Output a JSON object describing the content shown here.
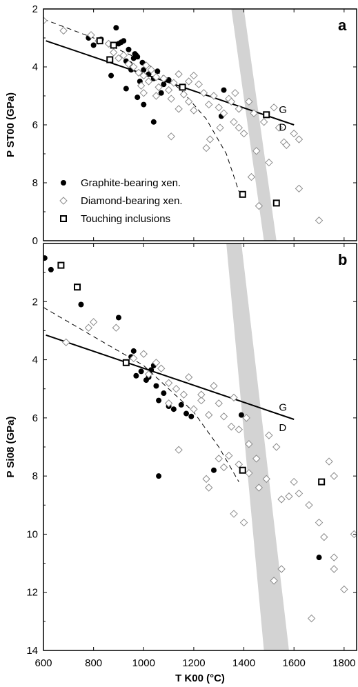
{
  "chart_data": {
    "type": "scatter",
    "xlabel": "T K00 (°C)",
    "xlim": [
      600,
      1850
    ],
    "xticks": [
      600,
      800,
      1000,
      1200,
      1400,
      1600,
      1800
    ],
    "legend": {
      "placement": "bottom-left of panel a",
      "entries": [
        "Graphite-bearing xen.",
        "Diamond-bearing xen.",
        "Touching inclusions"
      ]
    },
    "panels": [
      {
        "letter": "a",
        "ylabel": "P ST00 (GPa)",
        "ylim": [
          2,
          10
        ],
        "yticks": [
          2,
          4,
          6,
          8,
          0
        ],
        "band": [
          [
            1350,
            2
          ],
          [
            1400,
            2
          ],
          [
            1530,
            10
          ],
          [
            1480,
            10
          ]
        ],
        "lines": [
          {
            "label": "G",
            "style": "solid",
            "label_at": [
              1540,
              5.6
            ],
            "points": [
              [
                610,
                3.1
              ],
              [
                1600,
                6.0
              ]
            ]
          },
          {
            "label": "D",
            "style": "dashed",
            "label_at": [
              1540,
              6.2
            ],
            "points": [
              [
                600,
                2.35
              ],
              [
                800,
                3.0
              ],
              [
                1000,
                3.8
              ],
              [
                1150,
                4.8
              ],
              [
                1250,
                5.8
              ],
              [
                1330,
                7.0
              ],
              [
                1380,
                8.3
              ]
            ]
          }
        ],
        "series": [
          {
            "name": "Graphite-bearing xen.",
            "marker": "filled-circle",
            "points": [
              [
                780,
                3.0
              ],
              [
                800,
                3.25
              ],
              [
                830,
                3.05
              ],
              [
                870,
                4.3
              ],
              [
                890,
                2.65
              ],
              [
                900,
                3.2
              ],
              [
                910,
                3.15
              ],
              [
                920,
                3.1
              ],
              [
                930,
                3.8
              ],
              [
                940,
                3.4
              ],
              [
                945,
                3.9
              ],
              [
                950,
                4.1
              ],
              [
                960,
                3.7
              ],
              [
                965,
                3.55
              ],
              [
                970,
                3.6
              ],
              [
                975,
                3.65
              ],
              [
                985,
                4.5
              ],
              [
                995,
                3.85
              ],
              [
                1000,
                4.1
              ],
              [
                1020,
                4.25
              ],
              [
                1040,
                4.4
              ],
              [
                1055,
                4.15
              ],
              [
                1070,
                4.9
              ],
              [
                1080,
                4.6
              ],
              [
                1100,
                4.45
              ],
              [
                1040,
                5.9
              ],
              [
                1000,
                5.3
              ],
              [
                930,
                4.75
              ],
              [
                975,
                5.05
              ],
              [
                1320,
                4.8
              ],
              [
                1310,
                5.7
              ]
            ]
          },
          {
            "name": "Diamond-bearing xen.",
            "marker": "open-diamond",
            "points": [
              [
                600,
                2.4
              ],
              [
                680,
                2.75
              ],
              [
                790,
                2.9
              ],
              [
                820,
                3.1
              ],
              [
                860,
                3.2
              ],
              [
                880,
                3.5
              ],
              [
                900,
                3.7
              ],
              [
                920,
                3.6
              ],
              [
                940,
                3.9
              ],
              [
                960,
                4.0
              ],
              [
                980,
                4.2
              ],
              [
                1000,
                4.3
              ],
              [
                1010,
                3.95
              ],
              [
                1020,
                4.5
              ],
              [
                1030,
                4.1
              ],
              [
                1050,
                4.35
              ],
              [
                1060,
                4.7
              ],
              [
                1080,
                4.4
              ],
              [
                1100,
                4.8
              ],
              [
                1110,
                5.1
              ],
              [
                1120,
                4.55
              ],
              [
                1140,
                4.25
              ],
              [
                1160,
                4.95
              ],
              [
                1180,
                5.2
              ],
              [
                1200,
                5.5
              ],
              [
                1220,
                4.6
              ],
              [
                1240,
                4.9
              ],
              [
                1260,
                5.3
              ],
              [
                1280,
                5.0
              ],
              [
                1300,
                5.4
              ],
              [
                1320,
                5.6
              ],
              [
                1340,
                5.1
              ],
              [
                1360,
                5.9
              ],
              [
                1380,
                6.1
              ],
              [
                1400,
                6.3
              ],
              [
                1420,
                5.2
              ],
              [
                1440,
                5.6
              ],
              [
                1450,
                6.9
              ],
              [
                1480,
                5.9
              ],
              [
                1500,
                7.3
              ],
              [
                1520,
                5.4
              ],
              [
                1540,
                6.1
              ],
              [
                1560,
                6.6
              ],
              [
                1600,
                6.3
              ],
              [
                1620,
                6.5
              ],
              [
                1570,
                6.7
              ],
              [
                1430,
                7.8
              ],
              [
                1460,
                8.8
              ],
              [
                1620,
                8.2
              ],
              [
                1700,
                9.3
              ],
              [
                1110,
                6.4
              ],
              [
                1250,
                6.8
              ],
              [
                1265,
                6.5
              ],
              [
                1305,
                6.1
              ],
              [
                990,
                4.65
              ],
              [
                1050,
                5.0
              ],
              [
                1140,
                5.45
              ],
              [
                1000,
                4.9
              ],
              [
                1180,
                4.5
              ],
              [
                1200,
                4.3
              ],
              [
                1350,
                5.2
              ],
              [
                1365,
                4.9
              ],
              [
                1380,
                5.45
              ]
            ]
          },
          {
            "name": "Touching inclusions",
            "marker": "open-square",
            "points": [
              [
                825,
                3.1
              ],
              [
                865,
                3.75
              ],
              [
                880,
                3.25
              ],
              [
                1155,
                4.7
              ],
              [
                1490,
                5.65
              ],
              [
                1395,
                8.4
              ],
              [
                1530,
                8.7
              ]
            ]
          }
        ]
      },
      {
        "letter": "b",
        "ylabel": "P Si08 (GPa)",
        "ylim": [
          0,
          14
        ],
        "yticks": [
          2,
          4,
          6,
          8,
          10,
          12,
          14
        ],
        "band": [
          [
            1330,
            0
          ],
          [
            1390,
            0
          ],
          [
            1580,
            14
          ],
          [
            1480,
            14
          ]
        ],
        "lines": [
          {
            "label": "G",
            "style": "solid",
            "label_at": [
              1540,
              5.75
            ],
            "points": [
              [
                610,
                3.15
              ],
              [
                1600,
                6.05
              ]
            ]
          },
          {
            "label": "D",
            "style": "dashed",
            "label_at": [
              1540,
              6.45
            ],
            "points": [
              [
                600,
                2.2
              ],
              [
                800,
                3.2
              ],
              [
                1000,
                4.2
              ],
              [
                1100,
                5.0
              ],
              [
                1200,
                5.8
              ],
              [
                1300,
                7.0
              ],
              [
                1380,
                8.2
              ]
            ]
          }
        ],
        "series": [
          {
            "name": "Graphite-bearing xen.",
            "marker": "filled-circle",
            "points": [
              [
                605,
                0.5
              ],
              [
                630,
                0.9
              ],
              [
                750,
                2.1
              ],
              [
                900,
                2.55
              ],
              [
                930,
                4.1
              ],
              [
                950,
                3.9
              ],
              [
                960,
                3.7
              ],
              [
                970,
                4.55
              ],
              [
                990,
                4.4
              ],
              [
                1020,
                4.6
              ],
              [
                1030,
                4.35
              ],
              [
                1050,
                4.9
              ],
              [
                1060,
                5.4
              ],
              [
                1080,
                5.15
              ],
              [
                1100,
                5.6
              ],
              [
                1120,
                5.7
              ],
              [
                1150,
                5.55
              ],
              [
                1170,
                5.85
              ],
              [
                1190,
                5.95
              ],
              [
                1280,
                7.8
              ],
              [
                1390,
                5.9
              ],
              [
                1060,
                8.0
              ],
              [
                1700,
                10.8
              ],
              [
                1040,
                4.2
              ],
              [
                1010,
                4.7
              ]
            ]
          },
          {
            "name": "Diamond-bearing xen.",
            "marker": "open-diamond",
            "points": [
              [
                690,
                3.4
              ],
              [
                780,
                2.9
              ],
              [
                800,
                2.7
              ],
              [
                890,
                2.9
              ],
              [
                960,
                3.95
              ],
              [
                1000,
                3.8
              ],
              [
                1020,
                4.5
              ],
              [
                1050,
                4.1
              ],
              [
                1070,
                4.3
              ],
              [
                1100,
                5.5
              ],
              [
                1130,
                5.0
              ],
              [
                1160,
                5.2
              ],
              [
                1200,
                5.7
              ],
              [
                1230,
                5.4
              ],
              [
                1260,
                5.9
              ],
              [
                1280,
                4.9
              ],
              [
                1300,
                5.5
              ],
              [
                1320,
                5.95
              ],
              [
                1350,
                6.3
              ],
              [
                1360,
                5.3
              ],
              [
                1380,
                6.4
              ],
              [
                1410,
                6.0
              ],
              [
                1420,
                6.9
              ],
              [
                1450,
                7.4
              ],
              [
                1460,
                8.4
              ],
              [
                1500,
                6.6
              ],
              [
                1530,
                7.0
              ],
              [
                1550,
                8.8
              ],
              [
                1580,
                8.7
              ],
              [
                1620,
                8.6
              ],
              [
                1660,
                9.0
              ],
              [
                1700,
                9.6
              ],
              [
                1740,
                7.5
              ],
              [
                1760,
                8.0
              ],
              [
                1720,
                10.1
              ],
              [
                1760,
                10.8
              ],
              [
                1760,
                11.2
              ],
              [
                1800,
                11.9
              ],
              [
                1840,
                10.0
              ],
              [
                1520,
                11.6
              ],
              [
                1550,
                11.2
              ],
              [
                1670,
                12.9
              ],
              [
                1140,
                7.1
              ],
              [
                1250,
                8.1
              ],
              [
                1260,
                8.4
              ],
              [
                1300,
                7.4
              ],
              [
                1320,
                7.7
              ],
              [
                1360,
                9.3
              ],
              [
                1400,
                9.6
              ],
              [
                1420,
                7.9
              ],
              [
                1180,
                4.6
              ],
              [
                1100,
                4.8
              ],
              [
                1230,
                5.2
              ],
              [
                1340,
                7.3
              ],
              [
                1600,
                8.2
              ],
              [
                1490,
                8.1
              ],
              [
                1380,
                7.6
              ]
            ]
          },
          {
            "name": "Touching inclusions",
            "marker": "open-square",
            "points": [
              [
                670,
                0.75
              ],
              [
                735,
                1.5
              ],
              [
                930,
                4.1
              ],
              [
                1395,
                7.8
              ],
              [
                1710,
                8.2
              ]
            ]
          }
        ]
      }
    ]
  }
}
